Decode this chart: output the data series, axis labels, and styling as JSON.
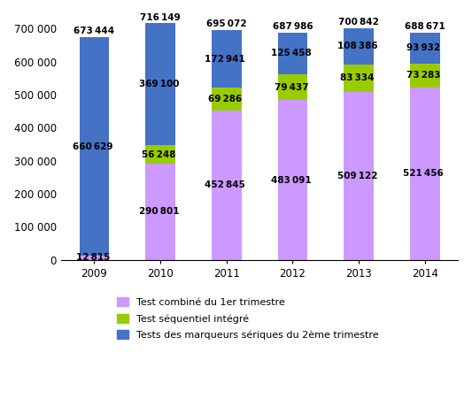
{
  "years": [
    "2009",
    "2010",
    "2011",
    "2012",
    "2013",
    "2014"
  ],
  "series": {
    "Test combiné du 1er trimestre": {
      "values": [
        12815,
        290801,
        452845,
        483091,
        509122,
        521456
      ],
      "color": "#CC99FF"
    },
    "Test séquentiel intégré": {
      "values": [
        0,
        56248,
        69286,
        79437,
        83334,
        73283
      ],
      "color": "#99CC00"
    },
    "Tests des marqueurs sériques du 2ème trimestre": {
      "values": [
        660629,
        369100,
        172941,
        125458,
        108386,
        93932
      ],
      "color": "#4472C4"
    }
  },
  "totals": [
    673444,
    716149,
    695072,
    687986,
    700842,
    688671
  ],
  "ylim": [
    0,
    750000
  ],
  "yticks": [
    0,
    100000,
    200000,
    300000,
    400000,
    500000,
    600000,
    700000
  ],
  "ytick_labels": [
    "0",
    "100 000",
    "200 000",
    "300 000",
    "400 000",
    "500 000",
    "600 000",
    "700 000"
  ],
  "background_color": "#FFFFFF",
  "legend_order": [
    "Test combiné du 1er trimestre",
    "Test séquentiel intégré",
    "Tests des marqueurs sériques du 2ème trimestre"
  ],
  "label_fontsize": 7.5,
  "total_fontsize": 7.5,
  "axis_fontsize": 8.5,
  "bar_width": 0.45
}
